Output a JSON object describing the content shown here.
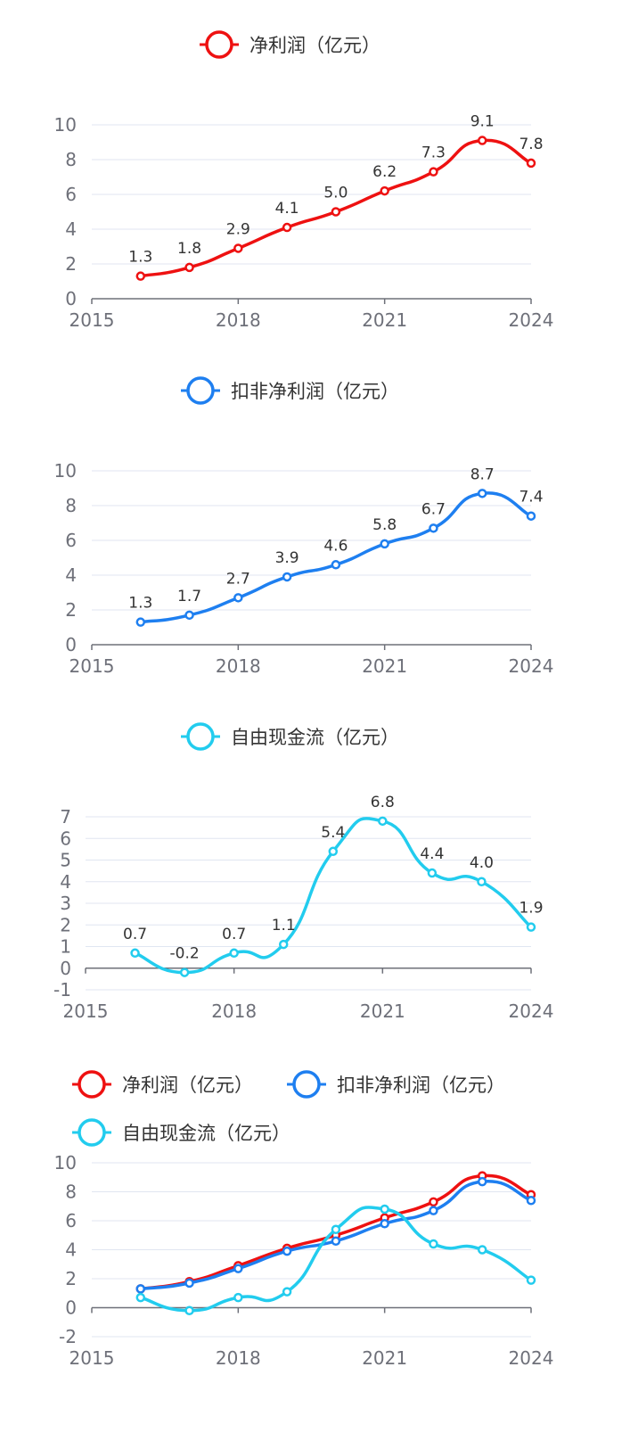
{
  "series": {
    "net": {
      "name": "净利润（亿元）",
      "color": "#ee1111"
    },
    "adj": {
      "name": "扣非净利润（亿元）",
      "color": "#1e7ff0"
    },
    "fcf": {
      "name": "自由现金流（亿元）",
      "color": "#22ccee"
    }
  },
  "chart_data": [
    {
      "type": "line",
      "title": "",
      "legend": [
        "净利润（亿元）"
      ],
      "x": [
        2016,
        2017,
        2018,
        2019,
        2020,
        2021,
        2022,
        2023,
        2024
      ],
      "x_ticks": [
        2015,
        2018,
        2021,
        2024
      ],
      "xlim": [
        2015,
        2024
      ],
      "ylim": [
        0,
        10
      ],
      "y_ticks": [
        0,
        2,
        4,
        6,
        8,
        10
      ],
      "series": [
        {
          "key": "net",
          "name": "净利润（亿元）",
          "values": [
            1.3,
            1.8,
            2.9,
            4.1,
            5.0,
            6.2,
            7.3,
            9.1,
            7.8
          ],
          "labels": [
            "1.3",
            "1.8",
            "2.9",
            "4.1",
            "5.0",
            "6.2",
            "7.3",
            "9.1",
            "7.8"
          ]
        }
      ],
      "data_labels": true
    },
    {
      "type": "line",
      "title": "",
      "legend": [
        "扣非净利润（亿元）"
      ],
      "x": [
        2016,
        2017,
        2018,
        2019,
        2020,
        2021,
        2022,
        2023,
        2024
      ],
      "x_ticks": [
        2015,
        2018,
        2021,
        2024
      ],
      "xlim": [
        2015,
        2024
      ],
      "ylim": [
        0,
        10
      ],
      "y_ticks": [
        0,
        2,
        4,
        6,
        8,
        10
      ],
      "series": [
        {
          "key": "adj",
          "name": "扣非净利润（亿元）",
          "values": [
            1.3,
            1.7,
            2.7,
            3.9,
            4.6,
            5.8,
            6.7,
            8.7,
            7.4
          ],
          "labels": [
            "1.3",
            "1.7",
            "2.7",
            "3.9",
            "4.6",
            "5.8",
            "6.7",
            "8.7",
            "7.4"
          ]
        }
      ],
      "data_labels": true
    },
    {
      "type": "line",
      "title": "",
      "legend": [
        "自由现金流（亿元）"
      ],
      "x": [
        2016,
        2017,
        2018,
        2019,
        2020,
        2021,
        2022,
        2023,
        2024
      ],
      "x_ticks": [
        2015,
        2018,
        2021,
        2024
      ],
      "xlim": [
        2015,
        2024
      ],
      "ylim": [
        -1,
        7
      ],
      "y_ticks": [
        -1,
        0,
        1,
        2,
        3,
        4,
        5,
        6,
        7
      ],
      "series": [
        {
          "key": "fcf",
          "name": "自由现金流（亿元）",
          "values": [
            0.7,
            -0.2,
            0.7,
            1.1,
            5.4,
            6.8,
            4.4,
            4.0,
            1.9
          ],
          "labels": [
            "0.7",
            "-0.2",
            "0.7",
            "1.1",
            "5.4",
            "6.8",
            "4.4",
            "4.0",
            "1.9"
          ]
        }
      ],
      "data_labels": true
    },
    {
      "type": "line",
      "title": "",
      "legend": [
        "净利润（亿元）",
        "扣非净利润（亿元）",
        "自由现金流（亿元）"
      ],
      "x": [
        2016,
        2017,
        2018,
        2019,
        2020,
        2021,
        2022,
        2023,
        2024
      ],
      "x_ticks": [
        2015,
        2018,
        2021,
        2024
      ],
      "xlim": [
        2015,
        2024
      ],
      "ylim": [
        -2,
        10
      ],
      "y_ticks": [
        -2,
        0,
        2,
        4,
        6,
        8,
        10
      ],
      "series": [
        {
          "key": "net",
          "name": "净利润（亿元）",
          "values": [
            1.3,
            1.8,
            2.9,
            4.1,
            5.0,
            6.2,
            7.3,
            9.1,
            7.8
          ]
        },
        {
          "key": "adj",
          "name": "扣非净利润（亿元）",
          "values": [
            1.3,
            1.7,
            2.7,
            3.9,
            4.6,
            5.8,
            6.7,
            8.7,
            7.4
          ]
        },
        {
          "key": "fcf",
          "name": "自由现金流（亿元）",
          "values": [
            0.7,
            -0.2,
            0.7,
            1.1,
            5.4,
            6.8,
            4.4,
            4.0,
            1.9
          ]
        }
      ],
      "data_labels": false
    }
  ]
}
